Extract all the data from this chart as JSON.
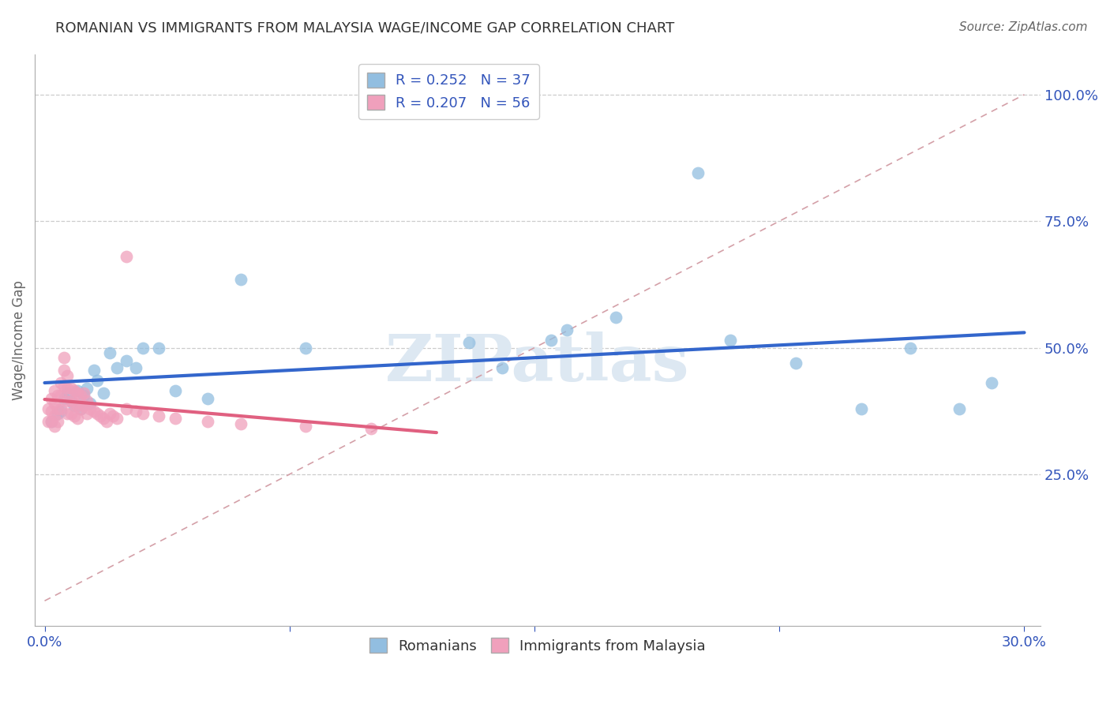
{
  "title": "ROMANIAN VS IMMIGRANTS FROM MALAYSIA WAGE/INCOME GAP CORRELATION CHART",
  "source": "Source: ZipAtlas.com",
  "ylabel": "Wage/Income Gap",
  "xlim": [
    -0.003,
    0.305
  ],
  "ylim": [
    -0.05,
    1.08
  ],
  "xticks": [
    0.0,
    0.075,
    0.15,
    0.225,
    0.3
  ],
  "xticklabels": [
    "0.0%",
    "",
    "",
    "",
    "30.0%"
  ],
  "ytick_positions": [
    0.25,
    0.5,
    0.75,
    1.0
  ],
  "ytick_labels": [
    "25.0%",
    "50.0%",
    "75.0%",
    "100.0%"
  ],
  "romanian_color": "#92BEE0",
  "malaysia_color": "#F0A0BC",
  "romanian_R": 0.252,
  "romanian_N": 37,
  "malaysia_R": 0.207,
  "malaysia_N": 56,
  "legend_color": "#3355BB",
  "watermark": "ZIPatlas",
  "romanian_x": [
    0.002,
    0.004,
    0.005,
    0.006,
    0.007,
    0.008,
    0.009,
    0.01,
    0.011,
    0.012,
    0.013,
    0.014,
    0.015,
    0.016,
    0.018,
    0.02,
    0.022,
    0.025,
    0.028,
    0.03,
    0.035,
    0.04,
    0.05,
    0.06,
    0.08,
    0.13,
    0.14,
    0.16,
    0.175,
    0.2,
    0.21,
    0.23,
    0.25,
    0.265,
    0.28,
    0.29,
    0.155
  ],
  "romanian_y": [
    0.355,
    0.37,
    0.375,
    0.4,
    0.41,
    0.395,
    0.385,
    0.415,
    0.38,
    0.405,
    0.42,
    0.39,
    0.455,
    0.435,
    0.41,
    0.49,
    0.46,
    0.475,
    0.46,
    0.5,
    0.5,
    0.415,
    0.4,
    0.635,
    0.5,
    0.51,
    0.46,
    0.535,
    0.56,
    0.845,
    0.515,
    0.47,
    0.38,
    0.5,
    0.38,
    0.43,
    0.515
  ],
  "malaysia_x": [
    0.001,
    0.001,
    0.002,
    0.002,
    0.002,
    0.003,
    0.003,
    0.003,
    0.003,
    0.004,
    0.004,
    0.004,
    0.005,
    0.005,
    0.005,
    0.006,
    0.006,
    0.006,
    0.007,
    0.007,
    0.007,
    0.007,
    0.008,
    0.008,
    0.008,
    0.009,
    0.009,
    0.009,
    0.01,
    0.01,
    0.01,
    0.011,
    0.011,
    0.012,
    0.012,
    0.013,
    0.013,
    0.014,
    0.015,
    0.016,
    0.017,
    0.018,
    0.019,
    0.02,
    0.021,
    0.022,
    0.025,
    0.028,
    0.03,
    0.035,
    0.04,
    0.05,
    0.06,
    0.08,
    0.1,
    0.025
  ],
  "malaysia_y": [
    0.38,
    0.355,
    0.4,
    0.375,
    0.355,
    0.415,
    0.39,
    0.365,
    0.345,
    0.405,
    0.38,
    0.355,
    0.43,
    0.405,
    0.38,
    0.48,
    0.455,
    0.425,
    0.445,
    0.42,
    0.395,
    0.37,
    0.42,
    0.395,
    0.37,
    0.415,
    0.39,
    0.365,
    0.41,
    0.385,
    0.36,
    0.405,
    0.38,
    0.41,
    0.385,
    0.395,
    0.37,
    0.38,
    0.375,
    0.37,
    0.365,
    0.36,
    0.355,
    0.37,
    0.365,
    0.36,
    0.38,
    0.375,
    0.37,
    0.365,
    0.36,
    0.355,
    0.35,
    0.345,
    0.34,
    0.68
  ],
  "ref_line_color": "#D4A0A8",
  "trend_blue_color": "#3366CC",
  "trend_pink_color": "#E06080"
}
